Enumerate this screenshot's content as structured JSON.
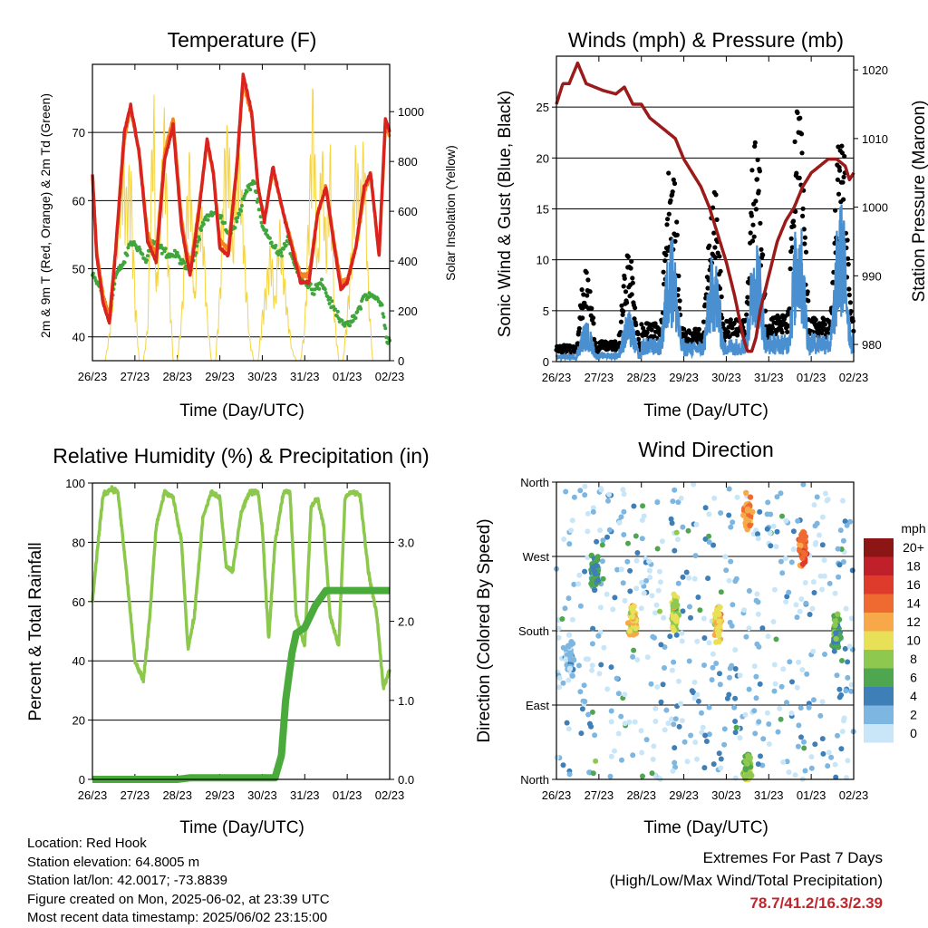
{
  "footer": {
    "location": "Location: Red Hook",
    "elevation": "Station elevation: 64.8005 m",
    "latlon": "Station lat/lon: 42.0017; -73.8839",
    "created": "Figure created on Mon, 2025-06-02, at 23:39 UTC",
    "recent": "Most recent data timestamp: 2025/06/02 23:15:00",
    "extremes_title": "Extremes For Past 7 Days",
    "extremes_sub": "(High/Low/Max Wind/Total Precipitation)",
    "extremes_values": "78.7/41.2/16.3/2.39"
  },
  "colors": {
    "temp_2m": "#d9231f",
    "temp_9m": "#f58220",
    "dewpoint": "#3fa63c",
    "solar": "#f5d442",
    "gust": "#000000",
    "wind": "#4a90d0",
    "pressure": "#9b1b1b",
    "rh": "#8cc84b",
    "precip": "#4aab3c"
  },
  "chart_data": [
    {
      "id": "temp",
      "type": "line",
      "title": "Temperature (F)",
      "xlabel": "Time (Day/UTC)",
      "ylabel": "2m & 9m T (Red, Orange) & 2m Td (Green)",
      "ylabel_right": "Solar Insolation (Yellow)",
      "x_ticks": [
        "26/23",
        "27/23",
        "28/23",
        "29/23",
        "30/23",
        "31/23",
        "01/23",
        "02/23"
      ],
      "xlim": [
        0,
        7
      ],
      "ylim": [
        36.5,
        80
      ],
      "y_ticks": [
        40,
        50,
        60,
        70
      ],
      "y2lim": [
        0,
        1190
      ],
      "y2_ticks": [
        0,
        200,
        400,
        600,
        800,
        1000
      ],
      "grid": true,
      "series": [
        {
          "key": "t2m",
          "axis": "left",
          "x": [
            0,
            0.1,
            0.25,
            0.4,
            0.55,
            0.75,
            0.9,
            1.1,
            1.3,
            1.5,
            1.7,
            1.9,
            2.1,
            2.3,
            2.5,
            2.7,
            2.85,
            3.0,
            3.2,
            3.4,
            3.55,
            3.75,
            3.9,
            4.05,
            4.25,
            4.5,
            4.7,
            4.9,
            5.1,
            5.3,
            5.5,
            5.7,
            5.85,
            6.0,
            6.2,
            6.4,
            6.55,
            6.75,
            6.9,
            7.0
          ],
          "y": [
            64,
            52,
            45,
            42,
            53,
            70,
            74,
            67,
            54,
            51,
            66,
            71,
            56,
            49,
            58,
            69,
            64,
            53,
            52,
            65,
            78.5,
            73,
            62,
            57,
            65,
            58,
            53,
            48,
            48,
            58,
            62,
            53,
            47,
            48,
            53,
            62,
            64,
            52,
            72,
            70
          ]
        },
        {
          "key": "t9m",
          "axis": "left",
          "x": [
            0,
            0.1,
            0.25,
            0.4,
            0.55,
            0.75,
            0.9,
            1.1,
            1.3,
            1.5,
            1.7,
            1.9,
            2.1,
            2.3,
            2.5,
            2.7,
            2.85,
            3.0,
            3.2,
            3.4,
            3.55,
            3.75,
            3.9,
            4.05,
            4.25,
            4.5,
            4.7,
            4.9,
            5.1,
            5.3,
            5.5,
            5.7,
            5.85,
            6.0,
            6.2,
            6.4,
            6.55,
            6.75,
            6.9,
            7.0
          ],
          "y": [
            63.5,
            52.5,
            46,
            43,
            53,
            69,
            73.5,
            67,
            55,
            52,
            67,
            72,
            57,
            50,
            58.5,
            68.5,
            64,
            54,
            53,
            65,
            77.5,
            72.5,
            62,
            57,
            64.5,
            58,
            53.5,
            49,
            49,
            58,
            62,
            53.5,
            48,
            48.5,
            53,
            61,
            64,
            52,
            71,
            69.5
          ]
        },
        {
          "key": "td",
          "axis": "left",
          "x": [
            0,
            0.2,
            0.4,
            0.55,
            0.75,
            0.9,
            1.1,
            1.25,
            1.4,
            1.6,
            1.8,
            2.0,
            2.2,
            2.4,
            2.6,
            2.8,
            3.0,
            3.2,
            3.4,
            3.6,
            3.8,
            4.0,
            4.2,
            4.4,
            4.6,
            4.8,
            5.0,
            5.2,
            5.4,
            5.6,
            5.8,
            6.0,
            6.2,
            6.4,
            6.6,
            6.8,
            6.95,
            7.0
          ],
          "y": [
            49,
            47,
            43,
            49,
            51,
            54,
            53,
            51,
            54,
            53,
            52,
            52,
            50,
            52,
            57,
            58,
            58,
            55,
            57,
            61,
            63,
            56,
            54,
            52,
            54,
            50,
            48,
            47,
            48,
            45,
            43,
            41.5,
            43,
            46,
            46,
            45,
            39,
            40
          ]
        },
        {
          "key": "solar",
          "axis": "right",
          "x": [
            0,
            0.3,
            0.4,
            0.5,
            0.6,
            0.7,
            0.8,
            0.9,
            1.0,
            1.1,
            1.2,
            1.3,
            1.4,
            1.45,
            1.5,
            1.6,
            1.7,
            1.8,
            1.9,
            2.0,
            2.1,
            2.2,
            2.3,
            2.4,
            2.5,
            2.6,
            2.7,
            2.8,
            2.9,
            3.0,
            3.1,
            3.2,
            3.3,
            3.4,
            3.5,
            3.6,
            3.7,
            3.8,
            3.9,
            4.0,
            4.1,
            4.2,
            4.3,
            4.4,
            4.5,
            4.6,
            4.7,
            4.8,
            4.9,
            5.0,
            5.1,
            5.2,
            5.3,
            5.4,
            5.5,
            5.6,
            5.7,
            5.8,
            5.9,
            6.0,
            6.1,
            6.2,
            6.3,
            6.4,
            6.5,
            6.6,
            6.7,
            6.8,
            6.9,
            7.0
          ],
          "y": [
            0,
            0,
            120,
            350,
            650,
            880,
            700,
            850,
            300,
            0,
            0,
            150,
            900,
            1100,
            300,
            700,
            1050,
            400,
            0,
            0,
            200,
            600,
            900,
            250,
            700,
            600,
            200,
            0,
            0,
            300,
            850,
            1000,
            500,
            900,
            800,
            400,
            100,
            0,
            0,
            200,
            350,
            500,
            250,
            600,
            400,
            200,
            50,
            0,
            0,
            150,
            700,
            1170,
            400,
            950,
            500,
            900,
            200,
            0,
            0,
            200,
            500,
            900,
            700,
            950,
            300,
            0,
            0,
            0,
            0,
            0
          ]
        }
      ]
    },
    {
      "id": "winds",
      "type": "scatter",
      "title": "Winds (mph) & Pressure (mb)",
      "xlabel": "Time (Day/UTC)",
      "ylabel": "Sonic Wind & Gust (Blue, Black)",
      "ylabel_right": "Station Pressure (Maroon)",
      "x_ticks": [
        "26/23",
        "27/23",
        "28/23",
        "29/23",
        "30/23",
        "31/23",
        "01/23",
        "02/23"
      ],
      "xlim": [
        0,
        7
      ],
      "ylim": [
        0,
        30
      ],
      "y_ticks": [
        0,
        5,
        10,
        15,
        20,
        25
      ],
      "y2lim": [
        977.5,
        1022
      ],
      "y2_ticks": [
        980,
        990,
        1000,
        1010,
        1020
      ],
      "grid": true,
      "daily_peak_gust": [
        9,
        11,
        21,
        18,
        23,
        26,
        24,
        22
      ],
      "daily_peak_wind": [
        4,
        5,
        13,
        11,
        13,
        15,
        16,
        14
      ],
      "series": [
        {
          "key": "pressure",
          "axis": "right",
          "x": [
            0,
            0.15,
            0.3,
            0.5,
            0.7,
            0.9,
            1.1,
            1.4,
            1.6,
            1.8,
            2.0,
            2.2,
            2.4,
            2.6,
            2.8,
            3.0,
            3.2,
            3.4,
            3.6,
            3.8,
            4.0,
            4.2,
            4.3,
            4.4,
            4.5,
            4.6,
            4.7,
            4.8,
            5.0,
            5.2,
            5.4,
            5.6,
            5.8,
            6.0,
            6.2,
            6.4,
            6.6,
            6.8,
            6.9,
            7.0
          ],
          "y": [
            1015,
            1018,
            1018,
            1021,
            1018,
            1017.5,
            1017,
            1016.5,
            1017.5,
            1015,
            1015,
            1013,
            1012,
            1011,
            1010,
            1007,
            1005,
            1003,
            1000,
            996,
            992,
            987,
            984,
            981,
            979,
            979,
            981,
            985,
            990,
            995,
            998,
            1000,
            1003,
            1005,
            1006,
            1007,
            1007,
            1006,
            1004,
            1005
          ]
        }
      ]
    },
    {
      "id": "rh",
      "type": "line",
      "title": "Relative Humidity (%) & Precipitation (in)",
      "xlabel": "Time (Day/UTC)",
      "ylabel": "Percent & Total Rainfall",
      "x_ticks": [
        "26/23",
        "27/23",
        "28/23",
        "29/23",
        "30/23",
        "31/23",
        "01/23",
        "02/23"
      ],
      "xlim": [
        0,
        7
      ],
      "ylim": [
        0,
        100
      ],
      "y_ticks": [
        0,
        20,
        40,
        60,
        80,
        100
      ],
      "y2lim": [
        0,
        3.75
      ],
      "y2_ticks": [
        "0.0",
        "1.0",
        "2.0",
        "3.0"
      ],
      "grid": true,
      "series": [
        {
          "key": "rh",
          "axis": "left",
          "x": [
            0,
            0.1,
            0.25,
            0.45,
            0.6,
            0.8,
            1.0,
            1.2,
            1.35,
            1.5,
            1.7,
            1.9,
            2.1,
            2.25,
            2.4,
            2.6,
            2.8,
            3.0,
            3.15,
            3.3,
            3.5,
            3.7,
            3.9,
            4.0,
            4.15,
            4.3,
            4.5,
            4.65,
            4.8,
            5.0,
            5.15,
            5.3,
            5.45,
            5.6,
            5.8,
            5.95,
            6.1,
            6.3,
            6.5,
            6.7,
            6.85,
            7.0
          ],
          "y": [
            60,
            75,
            96,
            98,
            97,
            70,
            40,
            33,
            55,
            85,
            97,
            95,
            80,
            44,
            55,
            88,
            97,
            95,
            72,
            70,
            90,
            97,
            97,
            85,
            47,
            80,
            97,
            97,
            55,
            45,
            92,
            95,
            85,
            55,
            45,
            95,
            97,
            96,
            70,
            55,
            31,
            37
          ]
        },
        {
          "key": "precip",
          "axis": "right",
          "x": [
            0,
            1.0,
            2.0,
            2.3,
            3.0,
            4.0,
            4.3,
            4.45,
            4.55,
            4.7,
            4.8,
            5.0,
            5.25,
            5.5,
            6.0,
            7.0
          ],
          "y": [
            0,
            0,
            0,
            0.02,
            0.02,
            0.02,
            0.02,
            0.3,
            1.0,
            1.6,
            1.85,
            1.92,
            2.2,
            2.39,
            2.39,
            2.39
          ]
        }
      ]
    },
    {
      "id": "wdir",
      "type": "scatter",
      "title": "Wind Direction",
      "xlabel": "Time (Day/UTC)",
      "ylabel": "Direction (Colored By Speed)",
      "x_ticks": [
        "26/23",
        "27/23",
        "28/23",
        "29/23",
        "30/23",
        "31/23",
        "01/23",
        "02/23"
      ],
      "xlim": [
        0,
        7
      ],
      "y_labels": [
        "North",
        "East",
        "South",
        "West",
        "North"
      ],
      "ylim": [
        0,
        360
      ],
      "grid": true,
      "colorbar_title": "mph",
      "colorbar_labels": [
        "20+",
        "18",
        "16",
        "14",
        "12",
        "10",
        "8",
        "6",
        "4",
        "2",
        "0"
      ],
      "colorbar_colors": [
        "#8c1516",
        "#c0202a",
        "#de3b2c",
        "#ef6a30",
        "#f7a94a",
        "#e8e158",
        "#8ec84e",
        "#4ea74f",
        "#3e7fb8",
        "#7db6e0",
        "#c8e6f7"
      ],
      "clusters": [
        {
          "x": 0.3,
          "dir": 150,
          "speed": 2
        },
        {
          "x": 0.9,
          "dir": 250,
          "speed": 5
        },
        {
          "x": 1.8,
          "dir": 190,
          "speed": 11
        },
        {
          "x": 2.8,
          "dir": 200,
          "speed": 9
        },
        {
          "x": 3.8,
          "dir": 190,
          "speed": 11
        },
        {
          "x": 4.5,
          "dir": 320,
          "speed": 13
        },
        {
          "x": 4.5,
          "dir": 15,
          "speed": 8
        },
        {
          "x": 5.8,
          "dir": 280,
          "speed": 15
        },
        {
          "x": 6.6,
          "dir": 180,
          "speed": 6
        }
      ]
    }
  ]
}
